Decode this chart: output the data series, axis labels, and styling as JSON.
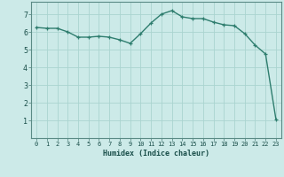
{
  "x": [
    0,
    1,
    2,
    3,
    4,
    5,
    6,
    7,
    8,
    9,
    10,
    11,
    12,
    13,
    14,
    15,
    16,
    17,
    18,
    19,
    20,
    21,
    22,
    23
  ],
  "y": [
    6.25,
    6.2,
    6.2,
    6.0,
    5.7,
    5.7,
    5.75,
    5.7,
    5.55,
    5.35,
    5.9,
    6.5,
    7.0,
    7.2,
    6.85,
    6.75,
    6.75,
    6.55,
    6.4,
    6.35,
    5.9,
    5.25,
    4.75,
    1.05
  ],
  "xlabel": "Humidex (Indice chaleur)",
  "xlim": [
    -0.5,
    23.5
  ],
  "ylim": [
    0,
    7.7
  ],
  "yticks": [
    1,
    2,
    3,
    4,
    5,
    6,
    7
  ],
  "xticks": [
    0,
    1,
    2,
    3,
    4,
    5,
    6,
    7,
    8,
    9,
    10,
    11,
    12,
    13,
    14,
    15,
    16,
    17,
    18,
    19,
    20,
    21,
    22,
    23
  ],
  "line_color": "#2e7d6e",
  "marker": "+",
  "bg_color": "#cceae8",
  "grid_color": "#aad4d0",
  "label_color": "#1a4f4a",
  "tick_color": "#1a4f4a",
  "axis_color": "#5a8a85"
}
